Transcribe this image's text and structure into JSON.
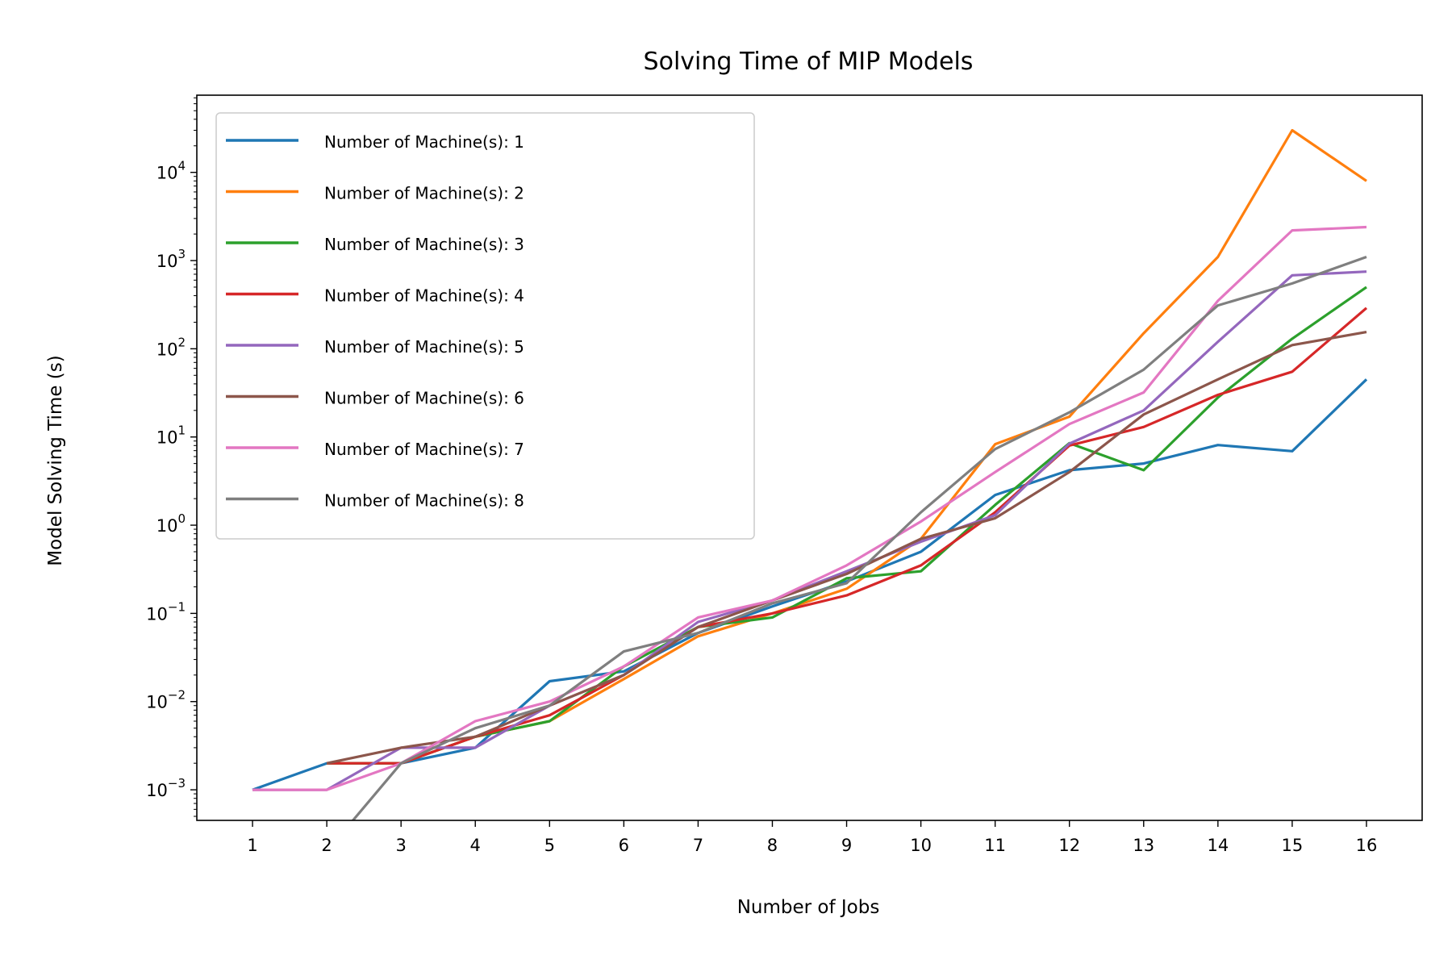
{
  "chart_data": {
    "type": "line",
    "title": "Solving Time of MIP Models",
    "xlabel": "Number of Jobs",
    "ylabel": "Model Solving Time (s)",
    "yscale": "log",
    "ylim": [
      0.00045,
      75000
    ],
    "xlim": [
      0.25,
      16.75
    ],
    "x": [
      1,
      2,
      3,
      4,
      5,
      6,
      7,
      8,
      9,
      10,
      11,
      12,
      13,
      14,
      15,
      16
    ],
    "y_ticks": [
      {
        "mantissa": "10",
        "exponent": "−3"
      },
      {
        "mantissa": "10",
        "exponent": "−2"
      },
      {
        "mantissa": "10",
        "exponent": "−1"
      },
      {
        "mantissa": "10",
        "exponent": "0"
      },
      {
        "mantissa": "10",
        "exponent": "1"
      },
      {
        "mantissa": "10",
        "exponent": "2"
      },
      {
        "mantissa": "10",
        "exponent": "3"
      },
      {
        "mantissa": "10",
        "exponent": "4"
      }
    ],
    "grid": false,
    "legend_position": "top-left",
    "series": [
      {
        "name": "Number of Machine(s): 1",
        "color": "#1f77b4",
        "values": [
          0.001,
          0.002,
          0.002,
          0.003,
          0.017,
          0.022,
          0.06,
          0.12,
          0.23,
          0.5,
          2.2,
          4.2,
          5,
          8.1,
          6.9,
          45
        ]
      },
      {
        "name": "Number of Machine(s): 2",
        "color": "#ff7f0e",
        "values": [
          null,
          0.002,
          0.002,
          0.004,
          0.006,
          0.018,
          0.055,
          0.1,
          0.19,
          0.7,
          8.3,
          17,
          150,
          1100,
          30000,
          8000
        ]
      },
      {
        "name": "Number of Machine(s): 3",
        "color": "#2ca02c",
        "values": [
          null,
          0.002,
          0.002,
          0.004,
          0.006,
          0.025,
          0.07,
          0.09,
          0.25,
          0.3,
          1.7,
          8.5,
          4.2,
          28,
          130,
          500
        ]
      },
      {
        "name": "Number of Machine(s): 4",
        "color": "#d62728",
        "values": [
          null,
          0.002,
          0.002,
          0.004,
          0.007,
          0.02,
          0.07,
          0.1,
          0.16,
          0.35,
          1.4,
          8,
          13,
          30,
          55,
          290
        ]
      },
      {
        "name": "Number of Machine(s): 5",
        "color": "#9467bd",
        "values": [
          0.001,
          0.001,
          0.003,
          0.003,
          0.009,
          0.02,
          0.08,
          0.14,
          0.3,
          0.65,
          1.3,
          8.4,
          20,
          120,
          680,
          750
        ]
      },
      {
        "name": "Number of Machine(s): 6",
        "color": "#8c564b",
        "values": [
          null,
          0.002,
          0.003,
          0.004,
          0.009,
          0.02,
          0.07,
          0.14,
          0.28,
          0.7,
          1.2,
          4,
          18,
          45,
          110,
          155
        ]
      },
      {
        "name": "Number of Machine(s): 7",
        "color": "#e377c2",
        "values": [
          0.001,
          0.001,
          0.002,
          0.006,
          0.01,
          0.025,
          0.09,
          0.14,
          0.35,
          1.1,
          4,
          14,
          32,
          350,
          2200,
          2400
        ]
      },
      {
        "name": "Number of Machine(s): 8",
        "color": "#7f7f7f",
        "values": [
          null,
          0.0002,
          0.002,
          0.005,
          0.009,
          0.037,
          0.06,
          0.13,
          0.22,
          1.4,
          7.3,
          19,
          58,
          310,
          550,
          1100
        ]
      }
    ]
  }
}
